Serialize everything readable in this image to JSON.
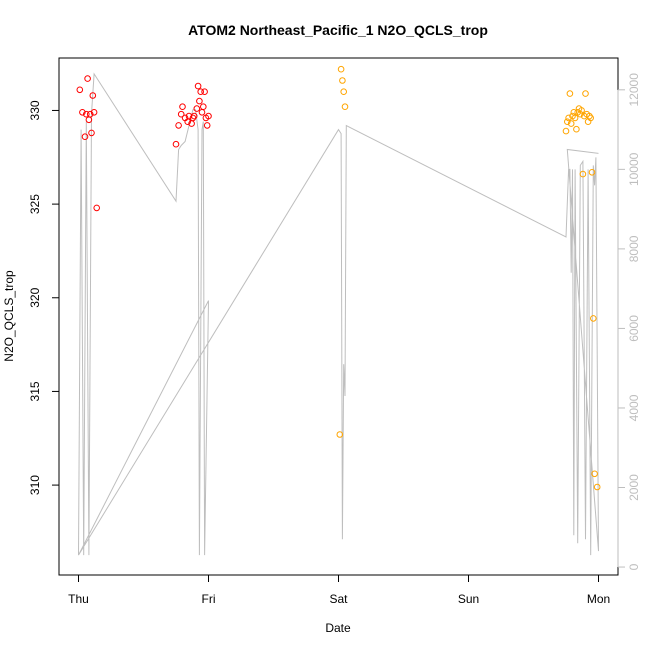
{
  "chart_data": {
    "type": "scatter",
    "title": "ATOM2 Northeast_Pacific_1 N2O_QCLS_trop",
    "xlabel": "Date",
    "ylabel": "N2O_QCLS_trop",
    "x_ticks": [
      "Thu",
      "Fri",
      "Sat",
      "Sun",
      "Mon"
    ],
    "xlim": [
      -0.15,
      4.15
    ],
    "ylim": [
      305.2,
      332.8
    ],
    "y_ticks": [
      310,
      315,
      320,
      325,
      330
    ],
    "y2lim": [
      -200,
      12800
    ],
    "y2_ticks": [
      0,
      2000,
      4000,
      6000,
      8000,
      10000,
      12000
    ],
    "colors": {
      "series_red": "#ff0000",
      "series_orange": "#ffa500",
      "altitude": "#bebebe",
      "axis": "#000000"
    },
    "series": [
      {
        "color": "red",
        "points": [
          [
            0.01,
            331.1
          ],
          [
            0.03,
            329.9
          ],
          [
            0.05,
            328.6
          ],
          [
            0.06,
            329.8
          ],
          [
            0.07,
            331.7
          ],
          [
            0.08,
            329.5
          ],
          [
            0.09,
            329.8
          ],
          [
            0.1,
            328.8
          ],
          [
            0.11,
            330.8
          ],
          [
            0.12,
            329.9
          ],
          [
            0.14,
            324.8
          ],
          [
            0.75,
            328.2
          ],
          [
            0.77,
            329.2
          ],
          [
            0.79,
            329.8
          ],
          [
            0.8,
            330.2
          ],
          [
            0.82,
            329.6
          ],
          [
            0.84,
            329.4
          ],
          [
            0.85,
            329.7
          ],
          [
            0.87,
            329.3
          ],
          [
            0.88,
            329.6
          ],
          [
            0.89,
            329.7
          ],
          [
            0.91,
            330.1
          ],
          [
            0.92,
            331.3
          ],
          [
            0.93,
            330.5
          ],
          [
            0.94,
            331.0
          ],
          [
            0.95,
            329.9
          ],
          [
            0.96,
            330.2
          ],
          [
            0.97,
            331.0
          ],
          [
            0.98,
            329.6
          ],
          [
            0.99,
            329.2
          ],
          [
            1.0,
            329.7
          ]
        ]
      },
      {
        "color": "orange",
        "points": [
          [
            2.01,
            312.7
          ],
          [
            2.02,
            332.2
          ],
          [
            2.03,
            331.6
          ],
          [
            2.04,
            331.0
          ],
          [
            2.05,
            330.2
          ],
          [
            3.75,
            328.9
          ],
          [
            3.76,
            329.4
          ],
          [
            3.77,
            329.6
          ],
          [
            3.78,
            330.9
          ],
          [
            3.79,
            329.3
          ],
          [
            3.8,
            329.7
          ],
          [
            3.81,
            329.9
          ],
          [
            3.82,
            329.6
          ],
          [
            3.83,
            329.0
          ],
          [
            3.84,
            329.9
          ],
          [
            3.85,
            330.1
          ],
          [
            3.86,
            329.8
          ],
          [
            3.87,
            330.0
          ],
          [
            3.88,
            326.6
          ],
          [
            3.89,
            329.7
          ],
          [
            3.9,
            330.9
          ],
          [
            3.91,
            329.8
          ],
          [
            3.92,
            329.4
          ],
          [
            3.93,
            329.7
          ],
          [
            3.94,
            329.6
          ],
          [
            3.95,
            326.7
          ],
          [
            3.96,
            318.9
          ],
          [
            3.97,
            310.6
          ],
          [
            3.99,
            309.9
          ]
        ]
      }
    ],
    "altitude": [
      [
        0.0,
        300
      ],
      [
        0.02,
        11000
      ],
      [
        0.04,
        300
      ],
      [
        0.06,
        11200
      ],
      [
        0.08,
        300
      ],
      [
        0.1,
        11400
      ],
      [
        0.12,
        12400
      ],
      [
        0.75,
        9200
      ],
      [
        0.77,
        10500
      ],
      [
        0.79,
        10600
      ],
      [
        0.82,
        10700
      ],
      [
        0.85,
        11100
      ],
      [
        0.88,
        11500
      ],
      [
        0.9,
        11500
      ],
      [
        0.92,
        11000
      ],
      [
        0.93,
        300
      ],
      [
        0.95,
        11000
      ],
      [
        0.96,
        11200
      ],
      [
        0.97,
        300
      ],
      [
        1.0,
        6700
      ],
      [
        0.0,
        300
      ],
      [
        2.0,
        11000
      ],
      [
        2.02,
        10900
      ],
      [
        2.03,
        700
      ],
      [
        2.04,
        5100
      ],
      [
        2.05,
        4300
      ],
      [
        2.06,
        11100
      ],
      [
        3.75,
        8300
      ],
      [
        3.77,
        10000
      ],
      [
        3.78,
        10000
      ],
      [
        3.79,
        7400
      ],
      [
        3.8,
        10000
      ],
      [
        3.81,
        800
      ],
      [
        3.82,
        10000
      ],
      [
        3.84,
        600
      ],
      [
        3.86,
        10100
      ],
      [
        3.88,
        10200
      ],
      [
        3.9,
        700
      ],
      [
        3.92,
        10000
      ],
      [
        3.94,
        300
      ],
      [
        3.96,
        10100
      ],
      [
        3.97,
        9600
      ],
      [
        3.98,
        10300
      ],
      [
        4.0,
        400
      ],
      [
        3.76,
        10500
      ],
      [
        4.0,
        10400
      ]
    ]
  }
}
